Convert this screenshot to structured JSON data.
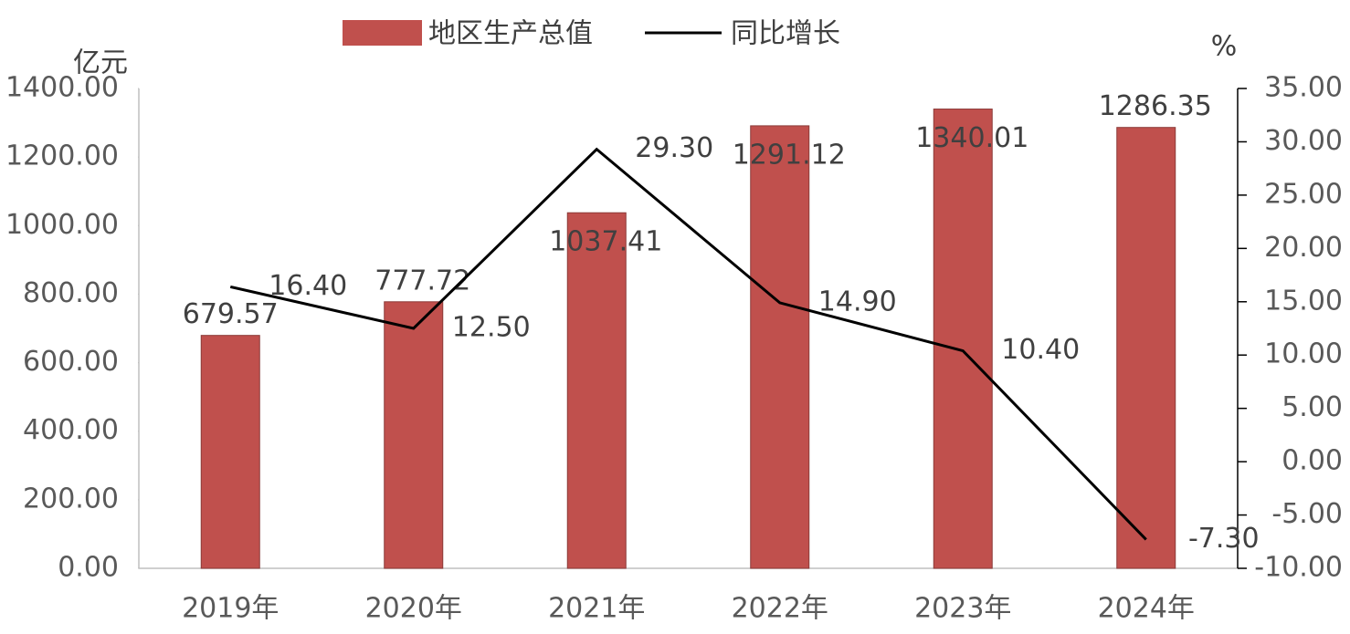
{
  "chart_data": {
    "type": "bar_line",
    "y_label": "亿元",
    "y2_label": "%",
    "categories": [
      "2019年",
      "2020年",
      "2021年",
      "2022年",
      "2023年",
      "2024年"
    ],
    "series": [
      {
        "name": "地区生产总值",
        "type": "bar",
        "color": "#c0504d",
        "values": [
          679.57,
          777.72,
          1037.41,
          1291.12,
          1340.01,
          1286.35
        ]
      },
      {
        "name": "同比增长",
        "type": "line",
        "axis": "y2",
        "color": "#000000",
        "values": [
          16.4,
          12.5,
          29.3,
          14.9,
          10.4,
          -7.3
        ],
        "value_labels": [
          "16.40",
          "12.50",
          "29.30",
          "14.90",
          "10.40",
          "-7.30"
        ]
      }
    ],
    "ylim": [
      0,
      1400
    ],
    "yticks": [
      {
        "value": 0,
        "label": "0.00"
      },
      {
        "value": 200,
        "label": "200.00"
      },
      {
        "value": 400,
        "label": "400.00"
      },
      {
        "value": 600,
        "label": "600.00"
      },
      {
        "value": 800,
        "label": "800.00"
      },
      {
        "value": 1000,
        "label": "1000.00"
      },
      {
        "value": 1200,
        "label": "1200.00"
      },
      {
        "value": 1400,
        "label": "1400.00"
      }
    ],
    "y2lim": [
      -10,
      35
    ],
    "y2ticks": [
      {
        "value": -10,
        "label": "-10.00"
      },
      {
        "value": -5,
        "label": "-5.00"
      },
      {
        "value": 0,
        "label": "0.00"
      },
      {
        "value": 5,
        "label": "5.00"
      },
      {
        "value": 10,
        "label": "10.00"
      },
      {
        "value": 15,
        "label": "15.00"
      },
      {
        "value": 20,
        "label": "20.00"
      },
      {
        "value": 25,
        "label": "25.00"
      },
      {
        "value": 30,
        "label": "30.00"
      },
      {
        "value": 35,
        "label": "35.00"
      }
    ],
    "grid": false,
    "legend": "top"
  }
}
